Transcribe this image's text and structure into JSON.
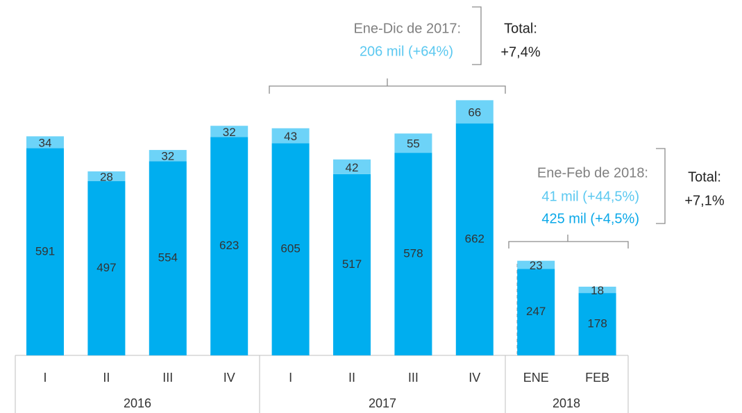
{
  "chart_data": {
    "type": "bar",
    "stacked": true,
    "categories": [
      "I",
      "II",
      "III",
      "IV",
      "I",
      "II",
      "III",
      "IV",
      "ENE",
      "FEB"
    ],
    "groups": [
      "2016",
      "2017",
      "2018"
    ],
    "series": [
      {
        "color": "#00aeef",
        "values": [
          591,
          497,
          554,
          623,
          605,
          517,
          578,
          662,
          247,
          178
        ]
      },
      {
        "color": "#6dd3f8",
        "values": [
          34,
          28,
          32,
          32,
          43,
          42,
          55,
          66,
          23,
          18
        ]
      }
    ],
    "annotations": {
      "period_2017": "Ene-Dic de 2017:",
      "value_2017": "206 mil (+64%)",
      "total_2017_label": "Total:",
      "total_2017": "+7,4%",
      "period_2018": "Ene-Feb de 2018:",
      "value_2018_new": "41 mil (+44,5%)",
      "value_2018_all": "425 mil (+4,5%)",
      "total_2018_label": "Total:",
      "total_2018": "+7,1%"
    }
  }
}
